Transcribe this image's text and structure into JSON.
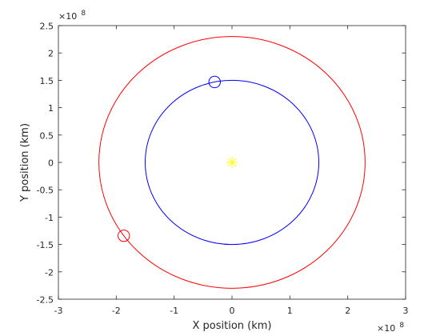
{
  "chart_data": {
    "type": "scatter",
    "title": "",
    "xlabel": "X position (km)",
    "ylabel": "Y position (km)",
    "xlim": [
      -300000000,
      300000000
    ],
    "ylim": [
      -250000000,
      250000000
    ],
    "x_tick_labels": [
      "-3",
      "-2",
      "-1",
      "0",
      "1",
      "2",
      "3"
    ],
    "y_tick_labels": [
      "-2.5",
      "-2",
      "-1.5",
      "-1",
      "-0.5",
      "0",
      "0.5",
      "1",
      "1.5",
      "2",
      "2.5"
    ],
    "x_exponent": {
      "base": "×10",
      "power": "8"
    },
    "y_exponent": {
      "base": "×10",
      "power": "8"
    },
    "grid": false,
    "series": [
      {
        "kind": "orbit",
        "color": "#0000ff",
        "center": [
          0,
          0
        ],
        "radius": 150000000,
        "body_position": [
          -30000000,
          147000000
        ]
      },
      {
        "kind": "orbit",
        "color": "#ff0000",
        "center": [
          0,
          0
        ],
        "radius": 230000000,
        "body_position": [
          -187000000,
          -134000000
        ]
      }
    ],
    "sun": {
      "position": [
        0,
        0
      ],
      "color": "#ffff00"
    }
  }
}
